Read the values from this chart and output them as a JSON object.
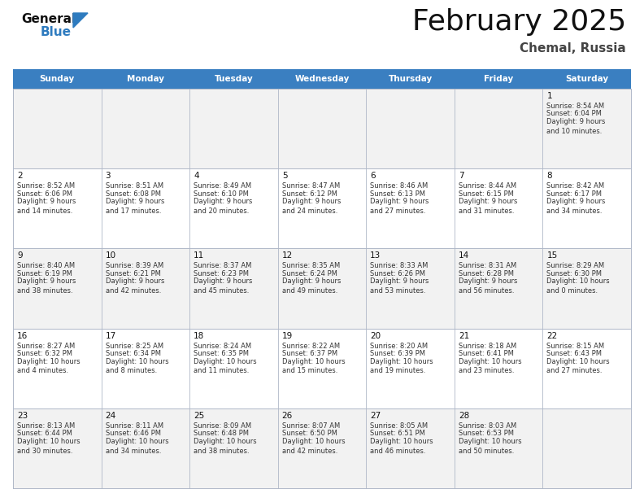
{
  "title": "February 2025",
  "subtitle": "Chemal, Russia",
  "days_of_week": [
    "Sunday",
    "Monday",
    "Tuesday",
    "Wednesday",
    "Thursday",
    "Friday",
    "Saturday"
  ],
  "header_color": "#3a7fc1",
  "header_text_color": "#ffffff",
  "bg_color": "#ffffff",
  "row_colors": [
    "#f2f2f2",
    "#ffffff",
    "#f2f2f2",
    "#ffffff",
    "#f2f2f2"
  ],
  "cell_border_color": "#b0b8c8",
  "info_text_color": "#333333",
  "title_color": "#111111",
  "subtitle_color": "#444444",
  "logo_color": "#2e7bbf",
  "calendar": [
    [
      {
        "day": "",
        "sunrise": "",
        "sunset": "",
        "daylight": ""
      },
      {
        "day": "",
        "sunrise": "",
        "sunset": "",
        "daylight": ""
      },
      {
        "day": "",
        "sunrise": "",
        "sunset": "",
        "daylight": ""
      },
      {
        "day": "",
        "sunrise": "",
        "sunset": "",
        "daylight": ""
      },
      {
        "day": "",
        "sunrise": "",
        "sunset": "",
        "daylight": ""
      },
      {
        "day": "",
        "sunrise": "",
        "sunset": "",
        "daylight": ""
      },
      {
        "day": "1",
        "sunrise": "8:54 AM",
        "sunset": "6:04 PM",
        "daylight": "9 hours\nand 10 minutes."
      }
    ],
    [
      {
        "day": "2",
        "sunrise": "8:52 AM",
        "sunset": "6:06 PM",
        "daylight": "9 hours\nand 14 minutes."
      },
      {
        "day": "3",
        "sunrise": "8:51 AM",
        "sunset": "6:08 PM",
        "daylight": "9 hours\nand 17 minutes."
      },
      {
        "day": "4",
        "sunrise": "8:49 AM",
        "sunset": "6:10 PM",
        "daylight": "9 hours\nand 20 minutes."
      },
      {
        "day": "5",
        "sunrise": "8:47 AM",
        "sunset": "6:12 PM",
        "daylight": "9 hours\nand 24 minutes."
      },
      {
        "day": "6",
        "sunrise": "8:46 AM",
        "sunset": "6:13 PM",
        "daylight": "9 hours\nand 27 minutes."
      },
      {
        "day": "7",
        "sunrise": "8:44 AM",
        "sunset": "6:15 PM",
        "daylight": "9 hours\nand 31 minutes."
      },
      {
        "day": "8",
        "sunrise": "8:42 AM",
        "sunset": "6:17 PM",
        "daylight": "9 hours\nand 34 minutes."
      }
    ],
    [
      {
        "day": "9",
        "sunrise": "8:40 AM",
        "sunset": "6:19 PM",
        "daylight": "9 hours\nand 38 minutes."
      },
      {
        "day": "10",
        "sunrise": "8:39 AM",
        "sunset": "6:21 PM",
        "daylight": "9 hours\nand 42 minutes."
      },
      {
        "day": "11",
        "sunrise": "8:37 AM",
        "sunset": "6:23 PM",
        "daylight": "9 hours\nand 45 minutes."
      },
      {
        "day": "12",
        "sunrise": "8:35 AM",
        "sunset": "6:24 PM",
        "daylight": "9 hours\nand 49 minutes."
      },
      {
        "day": "13",
        "sunrise": "8:33 AM",
        "sunset": "6:26 PM",
        "daylight": "9 hours\nand 53 minutes."
      },
      {
        "day": "14",
        "sunrise": "8:31 AM",
        "sunset": "6:28 PM",
        "daylight": "9 hours\nand 56 minutes."
      },
      {
        "day": "15",
        "sunrise": "8:29 AM",
        "sunset": "6:30 PM",
        "daylight": "10 hours\nand 0 minutes."
      }
    ],
    [
      {
        "day": "16",
        "sunrise": "8:27 AM",
        "sunset": "6:32 PM",
        "daylight": "10 hours\nand 4 minutes."
      },
      {
        "day": "17",
        "sunrise": "8:25 AM",
        "sunset": "6:34 PM",
        "daylight": "10 hours\nand 8 minutes."
      },
      {
        "day": "18",
        "sunrise": "8:24 AM",
        "sunset": "6:35 PM",
        "daylight": "10 hours\nand 11 minutes."
      },
      {
        "day": "19",
        "sunrise": "8:22 AM",
        "sunset": "6:37 PM",
        "daylight": "10 hours\nand 15 minutes."
      },
      {
        "day": "20",
        "sunrise": "8:20 AM",
        "sunset": "6:39 PM",
        "daylight": "10 hours\nand 19 minutes."
      },
      {
        "day": "21",
        "sunrise": "8:18 AM",
        "sunset": "6:41 PM",
        "daylight": "10 hours\nand 23 minutes."
      },
      {
        "day": "22",
        "sunrise": "8:15 AM",
        "sunset": "6:43 PM",
        "daylight": "10 hours\nand 27 minutes."
      }
    ],
    [
      {
        "day": "23",
        "sunrise": "8:13 AM",
        "sunset": "6:44 PM",
        "daylight": "10 hours\nand 30 minutes."
      },
      {
        "day": "24",
        "sunrise": "8:11 AM",
        "sunset": "6:46 PM",
        "daylight": "10 hours\nand 34 minutes."
      },
      {
        "day": "25",
        "sunrise": "8:09 AM",
        "sunset": "6:48 PM",
        "daylight": "10 hours\nand 38 minutes."
      },
      {
        "day": "26",
        "sunrise": "8:07 AM",
        "sunset": "6:50 PM",
        "daylight": "10 hours\nand 42 minutes."
      },
      {
        "day": "27",
        "sunrise": "8:05 AM",
        "sunset": "6:51 PM",
        "daylight": "10 hours\nand 46 minutes."
      },
      {
        "day": "28",
        "sunrise": "8:03 AM",
        "sunset": "6:53 PM",
        "daylight": "10 hours\nand 50 minutes."
      },
      {
        "day": "",
        "sunrise": "",
        "sunset": "",
        "daylight": ""
      }
    ]
  ]
}
